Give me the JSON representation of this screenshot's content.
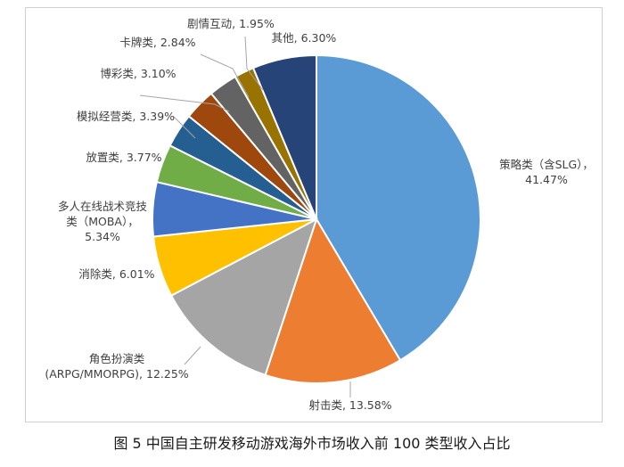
{
  "chart_data": {
    "type": "pie",
    "slices": [
      {
        "name": "策略类（含SLG）",
        "value": 41.47,
        "label_lines": [
          "策略类（含SLG），",
          "41.47%"
        ],
        "color": "#5b9bd5"
      },
      {
        "name": "射击类",
        "value": 13.58,
        "label_lines": [
          "射击类, 13.58%"
        ],
        "color": "#ed7d31"
      },
      {
        "name": "角色扮演类（ARPG/MMORPG）",
        "value": 12.25,
        "label_lines": [
          "角色扮演类",
          "(ARPG/MMORPG), 12.25%"
        ],
        "color": "#a5a5a5"
      },
      {
        "name": "消除类",
        "value": 6.01,
        "label_lines": [
          "消除类, 6.01%"
        ],
        "color": "#ffc000"
      },
      {
        "name": "多人在线战术竞技类（MOBA）",
        "value": 5.34,
        "label_lines": [
          "多人在线战术竞技",
          "类（MOBA），",
          "5.34%"
        ],
        "color": "#4472c4"
      },
      {
        "name": "放置类",
        "value": 3.77,
        "label_lines": [
          "放置类, 3.77%"
        ],
        "color": "#70ad47"
      },
      {
        "name": "模拟经营类",
        "value": 3.39,
        "label_lines": [
          "模拟经营类, 3.39%"
        ],
        "color": "#255e91"
      },
      {
        "name": "博彩类",
        "value": 3.1,
        "label_lines": [
          "博彩类, 3.10%"
        ],
        "color": "#9e480e"
      },
      {
        "name": "卡牌类",
        "value": 2.84,
        "label_lines": [
          "卡牌类, 2.84%"
        ],
        "color": "#636363"
      },
      {
        "name": "剧情互动",
        "value": 1.95,
        "label_lines": [
          "剧情互动, 1.95%"
        ],
        "color": "#997300"
      },
      {
        "name": "其他",
        "value": 6.3,
        "label_lines": [
          "其他, 6.30%"
        ],
        "color": "#264478"
      }
    ]
  },
  "caption": "图 5  中国自主研发移动游戏海外市场收入前 100 类型收入占比"
}
